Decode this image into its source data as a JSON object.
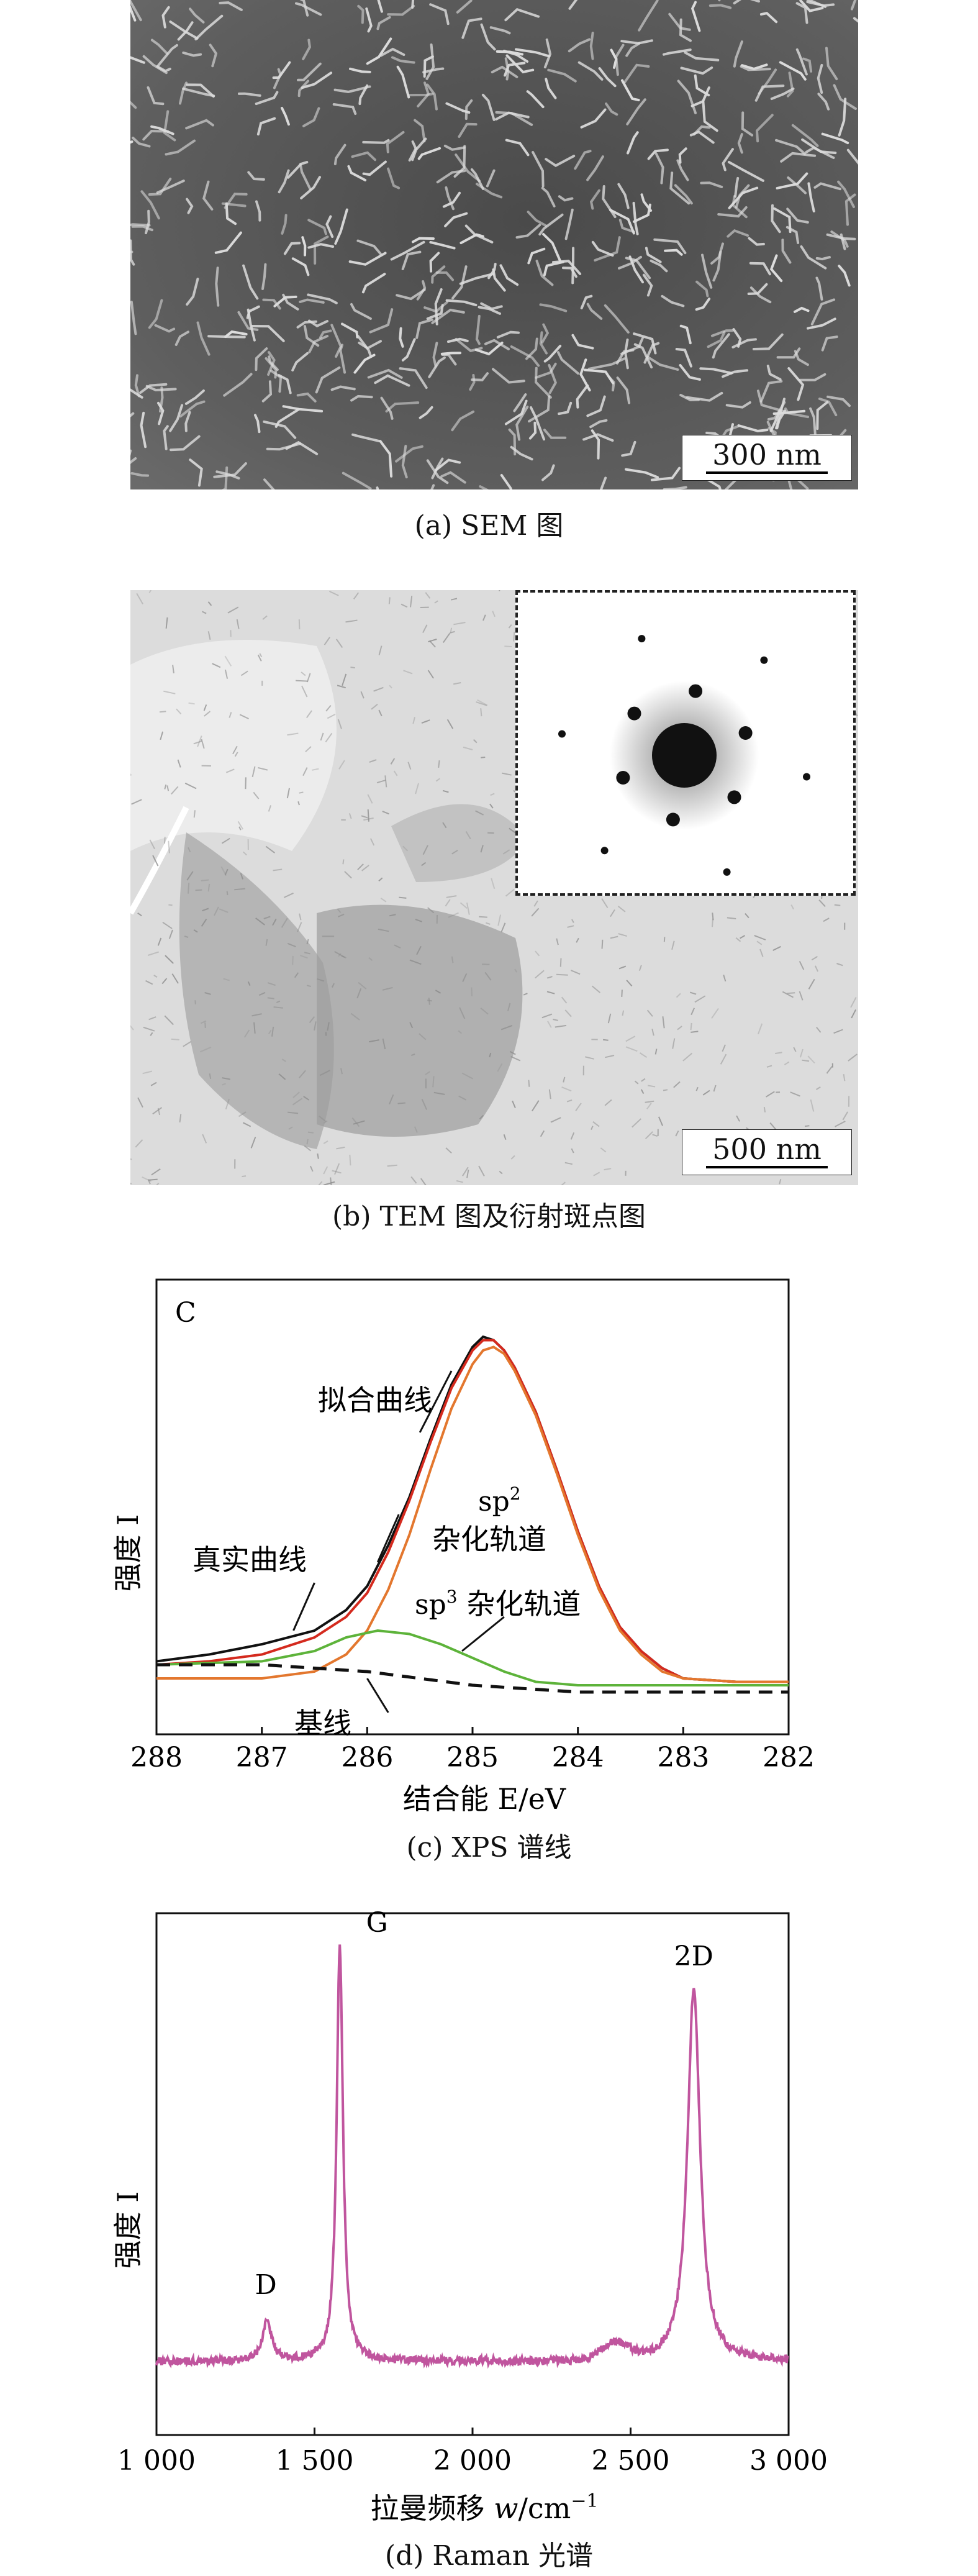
{
  "panels": {
    "sem": {
      "scale_bar": "300 nm",
      "caption": "(a) SEM 图"
    },
    "tem": {
      "scale_bar": "500 nm",
      "caption": "(b) TEM 图及衍射斑点图"
    },
    "xps": {
      "caption": "(c) XPS 谱线"
    },
    "raman": {
      "caption": "(d) Raman 光谱"
    }
  },
  "colors": {
    "raw_curve": "#111111",
    "fit_curve": "#d42a1e",
    "sp2_curve": "#e3772e",
    "sp3_curve": "#5db33a",
    "baseline": "#111111",
    "raman_curve": "#c0559e"
  },
  "chart_data": [
    {
      "type": "line",
      "panel_label": "C",
      "xlabel": "结合能 E/eV",
      "ylabel": "强度 I",
      "xlim": [
        288,
        282
      ],
      "x_reversed": true,
      "xticks": [
        "288",
        "287",
        "286",
        "285",
        "284",
        "283",
        "282"
      ],
      "annotations": {
        "fit": "拟合曲线",
        "sp2_a": "sp",
        "sp2_sup": "2",
        "sp2_b": "杂化轨道",
        "sp3_a": "sp",
        "sp3_sup": "3",
        "sp3_b": " 杂化轨道",
        "raw": "真实曲线",
        "baseline": "基线"
      },
      "series": [
        {
          "name": "真实曲线",
          "color": "#111111",
          "x": [
            288.0,
            287.5,
            287.0,
            286.5,
            286.2,
            286.0,
            285.8,
            285.6,
            285.4,
            285.2,
            285.0,
            284.9,
            284.8,
            284.7,
            284.6,
            284.4,
            284.2,
            284.0,
            283.8,
            283.6,
            283.4,
            283.2,
            283.0,
            282.5,
            282.0
          ],
          "y": [
            0.05,
            0.07,
            0.1,
            0.14,
            0.2,
            0.27,
            0.39,
            0.53,
            0.7,
            0.86,
            0.97,
            1.0,
            0.99,
            0.96,
            0.91,
            0.78,
            0.61,
            0.43,
            0.27,
            0.15,
            0.08,
            0.03,
            0.0,
            -0.01,
            -0.01
          ]
        },
        {
          "name": "拟合曲线",
          "color": "#d42a1e",
          "x": [
            288.0,
            287.5,
            287.0,
            286.5,
            286.2,
            286.0,
            285.8,
            285.6,
            285.4,
            285.2,
            285.0,
            284.9,
            284.8,
            284.7,
            284.6,
            284.4,
            284.2,
            284.0,
            283.8,
            283.6,
            283.4,
            283.2,
            283.0,
            282.5,
            282.0
          ],
          "y": [
            0.04,
            0.05,
            0.07,
            0.12,
            0.18,
            0.25,
            0.37,
            0.52,
            0.69,
            0.85,
            0.96,
            0.99,
            0.99,
            0.96,
            0.91,
            0.78,
            0.61,
            0.43,
            0.27,
            0.15,
            0.08,
            0.03,
            0.0,
            -0.01,
            -0.01
          ]
        },
        {
          "name": "sp2 杂化轨道",
          "color": "#e3772e",
          "x": [
            288.0,
            287.0,
            286.5,
            286.2,
            286.0,
            285.8,
            285.6,
            285.4,
            285.2,
            285.0,
            284.9,
            284.8,
            284.7,
            284.6,
            284.4,
            284.2,
            284.0,
            283.8,
            283.6,
            283.4,
            283.2,
            283.0,
            282.5,
            282.0
          ],
          "y": [
            0.0,
            0.0,
            0.02,
            0.07,
            0.14,
            0.26,
            0.42,
            0.61,
            0.79,
            0.92,
            0.96,
            0.97,
            0.95,
            0.9,
            0.77,
            0.6,
            0.42,
            0.26,
            0.14,
            0.07,
            0.02,
            0.0,
            -0.01,
            -0.01
          ]
        },
        {
          "name": "sp3 杂化轨道",
          "color": "#5db33a",
          "x": [
            288.0,
            287.0,
            286.5,
            286.2,
            285.9,
            285.6,
            285.3,
            285.0,
            284.7,
            284.4,
            284.0,
            283.5,
            283.0,
            282.5,
            282.0
          ],
          "y": [
            0.04,
            0.05,
            0.08,
            0.12,
            0.14,
            0.13,
            0.1,
            0.06,
            0.02,
            -0.01,
            -0.02,
            -0.02,
            -0.02,
            -0.02,
            -0.02
          ],
          "baseline_y": [
            0.04,
            0.04,
            0.03,
            0.01,
            -0.01,
            -0.02,
            -0.02,
            -0.02,
            -0.02,
            -0.02,
            -0.02,
            -0.02,
            -0.02,
            -0.02,
            -0.02
          ]
        },
        {
          "name": "基线",
          "color": "#111111",
          "style": "dashed",
          "x": [
            288.0,
            287.0,
            286.5,
            286.0,
            285.5,
            285.0,
            284.5,
            284.0,
            283.5,
            283.0,
            282.5,
            282.0
          ],
          "y": [
            0.04,
            0.04,
            0.03,
            0.02,
            0.0,
            -0.02,
            -0.03,
            -0.04,
            -0.04,
            -0.04,
            -0.04,
            -0.04
          ]
        }
      ]
    },
    {
      "type": "line",
      "xlabel_a": "拉曼频移 ",
      "xlabel_b": "w",
      "xlabel_c": "/cm",
      "xlabel_sup": "−1",
      "ylabel": "强度 I",
      "xlim": [
        1000,
        3000
      ],
      "xticks": [
        "1 000",
        "1 500",
        "2 000",
        "2 500",
        "3 000"
      ],
      "peaks": [
        {
          "label": "D",
          "x": 1350,
          "height": 0.09
        },
        {
          "label": "G",
          "x": 1580,
          "height": 0.96
        },
        {
          "label": "2D",
          "x": 2700,
          "height": 0.86
        }
      ],
      "series": [
        {
          "name": "Raman",
          "color": "#c0559e"
        }
      ]
    }
  ]
}
